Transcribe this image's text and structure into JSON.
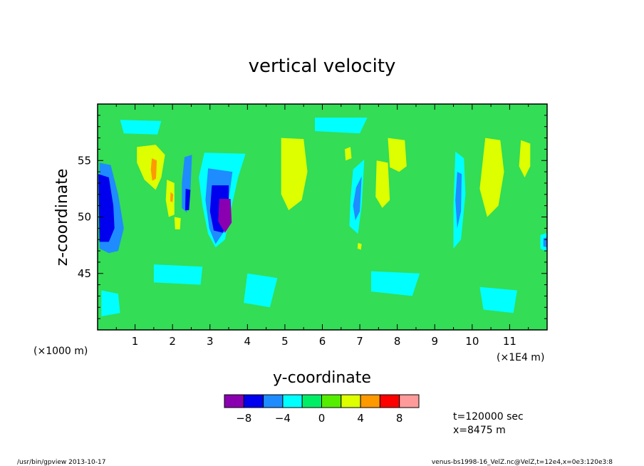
{
  "chart_data": {
    "type": "heatmap",
    "title": "vertical velocity",
    "xlabel": "y-coordinate",
    "ylabel": "z-coordinate",
    "x_unit_left": "(×1000 m)",
    "x_unit_right": "(×1E4 m)",
    "xlim": [
      0,
      12
    ],
    "ylim": [
      40,
      60
    ],
    "x_ticks": [
      1,
      2,
      3,
      4,
      5,
      6,
      7,
      8,
      9,
      10,
      11
    ],
    "x_tick_labels": [
      "1",
      "2",
      "3",
      "4",
      "5",
      "6",
      "7",
      "8",
      "9",
      "10",
      "11"
    ],
    "y_ticks": [
      45,
      50,
      55
    ],
    "y_tick_labels": [
      "45",
      "50",
      "55"
    ],
    "levels": [
      -10,
      -8,
      -6,
      -4,
      -2,
      0,
      2,
      4,
      6,
      8,
      10
    ],
    "colorbar_tick_values": [
      -8,
      -4,
      0,
      4,
      8
    ],
    "colorbar_tick_labels": [
      "−8",
      "−4",
      "0",
      "4",
      "8"
    ],
    "colors": [
      "#8a00b0",
      "#0000ee",
      "#1e8cff",
      "#00ffff",
      "#00ee66",
      "#55ee00",
      "#ddff00",
      "#ff9900",
      "#ff0000",
      "#ff9a9a"
    ],
    "background_color": "#33dd55",
    "regions": [
      {
        "level": 2,
        "polygon": [
          [
            0.05,
            54.8
          ],
          [
            0.35,
            54.6
          ],
          [
            0.55,
            52.0
          ],
          [
            0.7,
            49.0
          ],
          [
            0.55,
            47.0
          ],
          [
            0.3,
            46.8
          ],
          [
            0.05,
            47.2
          ]
        ]
      },
      {
        "level": 1,
        "polygon": [
          [
            0.02,
            53.8
          ],
          [
            0.3,
            53.5
          ],
          [
            0.42,
            51.0
          ],
          [
            0.45,
            49.0
          ],
          [
            0.3,
            47.8
          ],
          [
            0.05,
            47.8
          ]
        ]
      },
      {
        "level": 1,
        "polygon": [
          [
            0.05,
            52.6
          ],
          [
            0.22,
            52.3
          ],
          [
            0.28,
            50.0
          ],
          [
            0.2,
            48.6
          ],
          [
            0.05,
            48.4
          ]
        ]
      },
      {
        "level": 3,
        "polygon": [
          [
            2.85,
            55.7
          ],
          [
            3.95,
            55.6
          ],
          [
            3.75,
            53.5
          ],
          [
            3.55,
            50.5
          ],
          [
            3.4,
            48.0
          ],
          [
            3.15,
            47.3
          ],
          [
            2.95,
            48.5
          ],
          [
            2.8,
            51.0
          ],
          [
            2.7,
            53.5
          ]
        ]
      },
      {
        "level": 2,
        "polygon": [
          [
            2.95,
            54.3
          ],
          [
            3.6,
            54.0
          ],
          [
            3.5,
            51.5
          ],
          [
            3.35,
            48.6
          ],
          [
            3.15,
            47.6
          ],
          [
            2.98,
            49.0
          ],
          [
            2.88,
            51.5
          ]
        ]
      },
      {
        "level": 1,
        "polygon": [
          [
            3.05,
            52.8
          ],
          [
            3.5,
            52.8
          ],
          [
            3.5,
            50.0
          ],
          [
            3.35,
            48.6
          ],
          [
            3.1,
            48.8
          ],
          [
            3.0,
            50.5
          ]
        ]
      },
      {
        "level": 0,
        "polygon": [
          [
            3.25,
            51.6
          ],
          [
            3.55,
            51.6
          ],
          [
            3.58,
            49.5
          ],
          [
            3.4,
            48.6
          ],
          [
            3.22,
            49.6
          ]
        ]
      },
      {
        "level": 2,
        "polygon": [
          [
            2.32,
            55.3
          ],
          [
            2.52,
            55.5
          ],
          [
            2.48,
            52.5
          ],
          [
            2.38,
            50.4
          ],
          [
            2.25,
            50.8
          ],
          [
            2.25,
            53.0
          ]
        ]
      },
      {
        "level": 1,
        "polygon": [
          [
            2.35,
            52.5
          ],
          [
            2.48,
            52.4
          ],
          [
            2.44,
            50.6
          ],
          [
            2.34,
            50.6
          ]
        ]
      },
      {
        "level": 3,
        "polygon": [
          [
            6.82,
            54.2
          ],
          [
            7.12,
            55.1
          ],
          [
            7.05,
            51.0
          ],
          [
            6.95,
            48.5
          ],
          [
            6.72,
            49.2
          ],
          [
            6.75,
            51.5
          ]
        ]
      },
      {
        "level": 2,
        "polygon": [
          [
            6.9,
            52.6
          ],
          [
            7.05,
            53.6
          ],
          [
            7.0,
            50.5
          ],
          [
            6.88,
            49.7
          ],
          [
            6.82,
            51.0
          ]
        ]
      },
      {
        "level": 3,
        "polygon": [
          [
            9.55,
            55.8
          ],
          [
            9.78,
            55.2
          ],
          [
            9.82,
            52.0
          ],
          [
            9.7,
            48.0
          ],
          [
            9.5,
            47.2
          ],
          [
            9.5,
            51.0
          ]
        ]
      },
      {
        "level": 2,
        "polygon": [
          [
            9.6,
            54.0
          ],
          [
            9.72,
            53.8
          ],
          [
            9.7,
            50.5
          ],
          [
            9.6,
            49.0
          ],
          [
            9.55,
            51.5
          ]
        ]
      },
      {
        "level": 3,
        "polygon": [
          [
            11.82,
            48.4
          ],
          [
            12.0,
            48.6
          ],
          [
            12.0,
            46.9
          ],
          [
            11.82,
            47.2
          ]
        ]
      },
      {
        "level": 2,
        "polygon": [
          [
            11.9,
            48.1
          ],
          [
            12.0,
            48.2
          ],
          [
            12.0,
            47.3
          ],
          [
            11.9,
            47.4
          ]
        ]
      },
      {
        "level": 6,
        "polygon": [
          [
            1.05,
            56.2
          ],
          [
            1.55,
            56.4
          ],
          [
            1.8,
            55.5
          ],
          [
            1.7,
            53.5
          ],
          [
            1.55,
            52.4
          ],
          [
            1.25,
            53.3
          ],
          [
            1.05,
            54.8
          ]
        ]
      },
      {
        "level": 7,
        "polygon": [
          [
            1.45,
            55.2
          ],
          [
            1.58,
            55.0
          ],
          [
            1.56,
            53.4
          ],
          [
            1.46,
            53.2
          ],
          [
            1.42,
            54.2
          ]
        ]
      },
      {
        "level": 6,
        "polygon": [
          [
            1.85,
            53.3
          ],
          [
            2.05,
            53.0
          ],
          [
            2.05,
            50.2
          ],
          [
            1.9,
            50.0
          ],
          [
            1.82,
            51.5
          ]
        ]
      },
      {
        "level": 7,
        "polygon": [
          [
            1.95,
            52.2
          ],
          [
            2.02,
            52.0
          ],
          [
            2.0,
            51.3
          ],
          [
            1.94,
            51.4
          ]
        ]
      },
      {
        "level": 6,
        "polygon": [
          [
            4.9,
            57.0
          ],
          [
            5.5,
            56.9
          ],
          [
            5.6,
            54.0
          ],
          [
            5.45,
            51.5
          ],
          [
            5.1,
            50.6
          ],
          [
            4.9,
            52.0
          ]
        ]
      },
      {
        "level": 6,
        "polygon": [
          [
            7.75,
            57.0
          ],
          [
            8.2,
            56.8
          ],
          [
            8.25,
            54.5
          ],
          [
            8.05,
            54.0
          ],
          [
            7.8,
            54.4
          ]
        ]
      },
      {
        "level": 6,
        "polygon": [
          [
            7.45,
            55.0
          ],
          [
            7.75,
            54.8
          ],
          [
            7.8,
            51.5
          ],
          [
            7.6,
            50.8
          ],
          [
            7.42,
            51.8
          ]
        ]
      },
      {
        "level": 6,
        "polygon": [
          [
            10.35,
            57.0
          ],
          [
            10.75,
            56.8
          ],
          [
            10.85,
            54.0
          ],
          [
            10.7,
            51.0
          ],
          [
            10.4,
            50.0
          ],
          [
            10.2,
            52.5
          ]
        ]
      },
      {
        "level": 6,
        "polygon": [
          [
            11.3,
            56.8
          ],
          [
            11.55,
            56.5
          ],
          [
            11.55,
            54.5
          ],
          [
            11.4,
            53.5
          ],
          [
            11.25,
            54.5
          ]
        ]
      },
      {
        "level": 6,
        "polygon": [
          [
            6.6,
            56.0
          ],
          [
            6.75,
            56.2
          ],
          [
            6.78,
            55.2
          ],
          [
            6.62,
            55.0
          ]
        ]
      },
      {
        "level": 6,
        "polygon": [
          [
            2.05,
            50.0
          ],
          [
            2.22,
            49.9
          ],
          [
            2.2,
            48.9
          ],
          [
            2.07,
            48.9
          ]
        ]
      },
      {
        "level": 6,
        "polygon": [
          [
            6.95,
            47.7
          ],
          [
            7.05,
            47.6
          ],
          [
            7.03,
            47.1
          ],
          [
            6.94,
            47.2
          ]
        ]
      },
      {
        "level": 3,
        "polygon": [
          [
            0.1,
            43.5
          ],
          [
            0.55,
            43.2
          ],
          [
            0.6,
            41.5
          ],
          [
            0.1,
            41.2
          ]
        ]
      },
      {
        "level": 3,
        "polygon": [
          [
            1.5,
            45.8
          ],
          [
            2.8,
            45.6
          ],
          [
            2.75,
            44.0
          ],
          [
            1.5,
            44.2
          ]
        ]
      },
      {
        "level": 3,
        "polygon": [
          [
            4.0,
            45.0
          ],
          [
            4.8,
            44.6
          ],
          [
            4.6,
            42.0
          ],
          [
            3.9,
            42.4
          ]
        ]
      },
      {
        "level": 3,
        "polygon": [
          [
            7.3,
            45.2
          ],
          [
            8.6,
            45.0
          ],
          [
            8.4,
            43.0
          ],
          [
            7.3,
            43.4
          ]
        ]
      },
      {
        "level": 3,
        "polygon": [
          [
            10.2,
            43.8
          ],
          [
            11.2,
            43.5
          ],
          [
            11.1,
            41.5
          ],
          [
            10.3,
            41.8
          ]
        ]
      },
      {
        "level": 3,
        "polygon": [
          [
            5.8,
            58.8
          ],
          [
            7.2,
            58.8
          ],
          [
            7.0,
            57.4
          ],
          [
            5.8,
            57.6
          ]
        ]
      },
      {
        "level": 3,
        "polygon": [
          [
            0.6,
            58.6
          ],
          [
            1.7,
            58.5
          ],
          [
            1.6,
            57.3
          ],
          [
            0.7,
            57.4
          ]
        ]
      }
    ]
  },
  "annotations": {
    "time": "t=120000 sec",
    "position": "x=8475 m"
  },
  "footer": {
    "left": "/usr/bin/gpview   2013-10-17",
    "right": "venus-bs1998-16_VelZ.nc@VelZ,t=12e4,x=0e3:120e3:8"
  }
}
